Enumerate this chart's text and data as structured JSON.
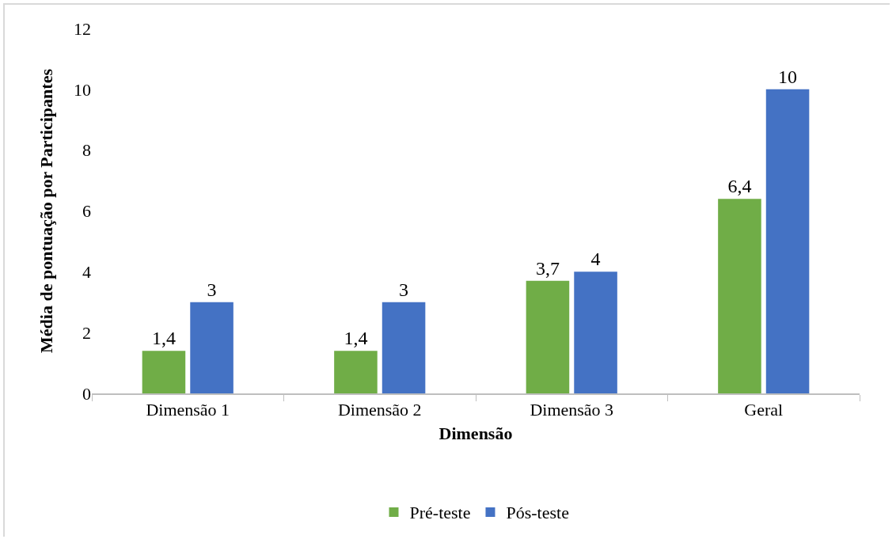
{
  "chart_data": {
    "type": "bar",
    "xlabel": "Dimensão",
    "ylabel": "Média de pontuação por Participantes",
    "categories": [
      "Dimensão 1",
      "Dimensão 2",
      "Dimensão 3",
      "Geral"
    ],
    "series": [
      {
        "name": "Pré-teste",
        "color": "#70ad47",
        "values": [
          1.4,
          1.4,
          3.7,
          6.4
        ],
        "value_labels": [
          "1,4",
          "1,4",
          "3,7",
          "6,4"
        ]
      },
      {
        "name": "Pós-teste",
        "color": "#4472c4",
        "values": [
          3,
          3,
          4,
          10
        ],
        "value_labels": [
          "3",
          "3",
          "4",
          "10"
        ]
      }
    ],
    "ylim": [
      0,
      12
    ],
    "yticks": [
      0,
      2,
      4,
      6,
      8,
      10,
      12
    ],
    "grid": false,
    "legend": "bottom"
  }
}
